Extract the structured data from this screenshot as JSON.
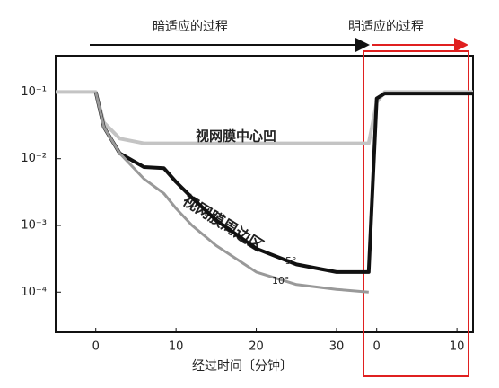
{
  "chart_data": {
    "type": "line",
    "dark_phase": "暗适应的过程",
    "light_phase": "明适应的过程",
    "annotation": "视网膜周边区",
    "xlabel": "经过时间〔分钟〕",
    "x": [
      -5,
      0,
      1,
      3,
      6,
      8.5,
      10,
      12,
      15,
      20,
      25,
      30,
      34,
      35,
      36,
      40,
      47
    ],
    "series": [
      {
        "name": "视网膜中心凹",
        "color": "#c4c4c4",
        "values": [
          0.1,
          0.1,
          0.035,
          0.02,
          0.017,
          0.017,
          0.017,
          0.017,
          0.017,
          0.017,
          0.017,
          0.017,
          0.017,
          0.07,
          0.1,
          0.1,
          0.1
        ]
      },
      {
        "name": "5°",
        "color": "#111111",
        "values": [
          null,
          0.1,
          0.03,
          0.012,
          0.0075,
          0.0072,
          0.0045,
          0.0026,
          0.0012,
          0.00045,
          0.00026,
          0.0002,
          0.0002,
          0.08,
          0.095,
          0.095,
          0.095
        ]
      },
      {
        "name": "10°",
        "color": "#999999",
        "values": [
          null,
          0.1,
          0.03,
          0.012,
          0.005,
          0.003,
          0.0018,
          0.001,
          0.0005,
          0.0002,
          0.00013,
          0.00011,
          0.0001,
          null,
          null,
          null,
          null
        ]
      }
    ],
    "xlim": [
      -5,
      47
    ],
    "xticks": [
      0,
      10,
      20,
      30,
      {
        "value": 35,
        "label": "0"
      },
      {
        "value": 45,
        "label": "10"
      }
    ],
    "ylim": [
      2.5e-05,
      0.35
    ],
    "yticks": [
      {
        "value": 0.1,
        "label": "10⁻¹"
      },
      {
        "value": 0.01,
        "label": "10⁻²"
      },
      {
        "value": 0.001,
        "label": "10⁻³"
      },
      {
        "value": 0.0001,
        "label": "10⁻⁴"
      }
    ],
    "log_y": true
  }
}
